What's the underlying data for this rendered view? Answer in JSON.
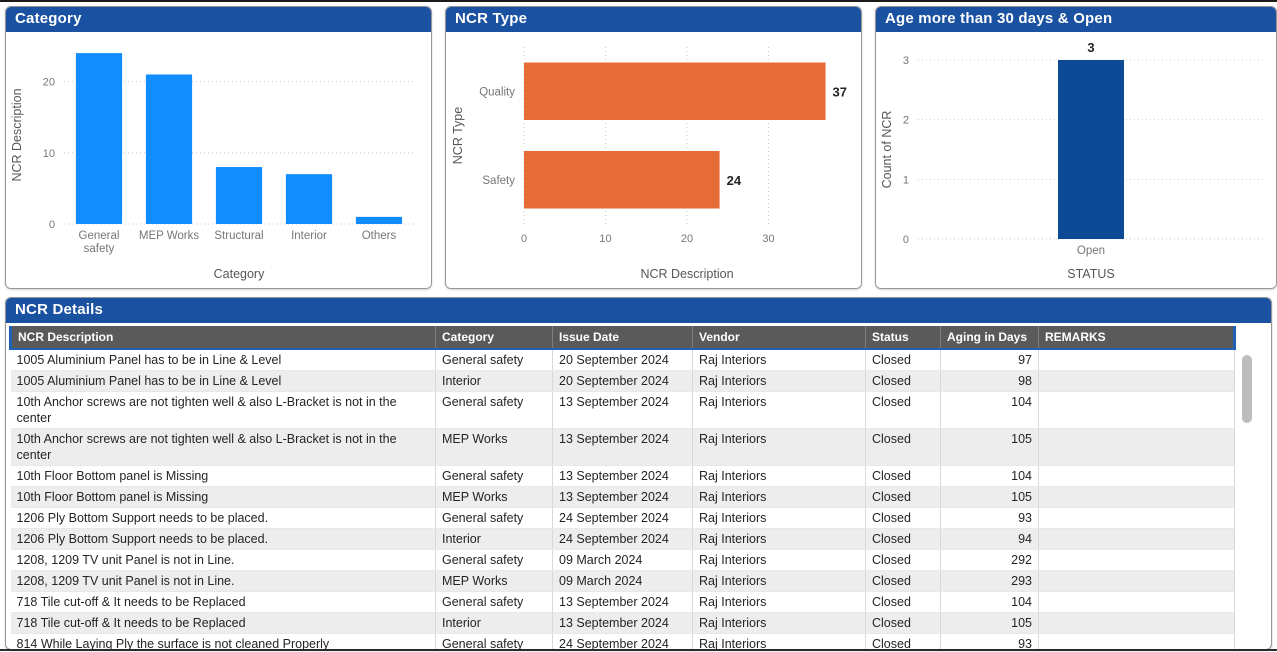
{
  "accent_colors": {
    "title_bar_blue": "#1A51A1",
    "category_bar_blue": "#118DFF",
    "ncr_type_bar_orange": "#E66C37",
    "age_bar_dark_blue": "#0D4A96",
    "table_header_gray": "#5A5A5A",
    "header_accent_blue": "#1F62B5"
  },
  "panels": {
    "category": {
      "title": "Category"
    },
    "ncr_type": {
      "title": "NCR Type"
    },
    "age": {
      "title": "Age more than 30 days & Open"
    },
    "details": {
      "title": "NCR Details"
    }
  },
  "chart_data": [
    {
      "type": "bar",
      "title": "Category",
      "categories": [
        "General\nsafety",
        "MEP Works",
        "Structural",
        "Interior",
        "Others"
      ],
      "values": [
        24,
        21,
        8,
        7,
        1
      ],
      "xlabel": "Category",
      "ylabel": "NCR Description",
      "yticks": [
        0,
        10,
        20
      ],
      "ylim": [
        0,
        25
      ],
      "grid": "dotted-horizontal",
      "color": "#118DFF",
      "show_data_labels": false
    },
    {
      "type": "bar-horizontal",
      "title": "NCR Type",
      "categories": [
        "Quality",
        "Safety"
      ],
      "values": [
        37,
        24
      ],
      "xlabel": "NCR Description",
      "ylabel": "NCR Type",
      "xticks": [
        0,
        10,
        20,
        30
      ],
      "xlim": [
        0,
        40
      ],
      "grid": "dotted-vertical",
      "color": "#E66C37",
      "show_data_labels": true
    },
    {
      "type": "bar",
      "title": "Age more than 30 days & Open",
      "categories": [
        "Open"
      ],
      "values": [
        3
      ],
      "xlabel": "STATUS",
      "ylabel": "Count of NCR",
      "yticks": [
        0,
        1,
        2,
        3
      ],
      "ylim": [
        0,
        3
      ],
      "grid": "dotted-horizontal",
      "color": "#0D4A96",
      "show_data_labels": true
    }
  ],
  "table": {
    "columns": [
      "NCR Description",
      "Category",
      "Issue Date",
      "Vendor",
      "Status",
      "Aging in Days",
      "REMARKS"
    ],
    "rows": [
      [
        "1005 Aluminium Panel has to be in Line & Level",
        "General safety",
        "20 September 2024",
        "Raj Interiors",
        "Closed",
        "97",
        ""
      ],
      [
        "1005 Aluminium Panel has to be in Line & Level",
        "Interior",
        "20 September 2024",
        "Raj Interiors",
        "Closed",
        "98",
        ""
      ],
      [
        "10th Anchor screws are not tighten well & also L-Bracket is not in the center",
        "General safety",
        "13 September 2024",
        "Raj Interiors",
        "Closed",
        "104",
        ""
      ],
      [
        "10th Anchor screws are not tighten well & also L-Bracket is not in the center",
        "MEP Works",
        "13 September 2024",
        "Raj Interiors",
        "Closed",
        "105",
        ""
      ],
      [
        "10th Floor Bottom panel is Missing",
        "General safety",
        "13 September 2024",
        "Raj Interiors",
        "Closed",
        "104",
        ""
      ],
      [
        "10th Floor Bottom panel is Missing",
        "MEP Works",
        "13 September 2024",
        "Raj Interiors",
        "Closed",
        "105",
        ""
      ],
      [
        "1206 Ply Bottom Support needs to be placed.",
        "General safety",
        "24 September 2024",
        "Raj Interiors",
        "Closed",
        "93",
        ""
      ],
      [
        "1206 Ply Bottom Support needs to be placed.",
        "Interior",
        "24 September 2024",
        "Raj Interiors",
        "Closed",
        "94",
        ""
      ],
      [
        "1208, 1209 TV unit Panel is not in Line.",
        "General safety",
        "09 March 2024",
        "Raj Interiors",
        "Closed",
        "292",
        ""
      ],
      [
        "1208, 1209 TV unit Panel is not in Line.",
        "MEP Works",
        "09 March 2024",
        "Raj Interiors",
        "Closed",
        "293",
        ""
      ],
      [
        "718 Tile cut-off & It needs to be Replaced",
        "General safety",
        "13 September 2024",
        "Raj Interiors",
        "Closed",
        "104",
        ""
      ],
      [
        "718 Tile cut-off & It needs to be Replaced",
        "Interior",
        "13 September 2024",
        "Raj Interiors",
        "Closed",
        "105",
        ""
      ],
      [
        "814 While Laying Ply the surface is not cleaned Properly",
        "General safety",
        "24 September 2024",
        "Raj Interiors",
        "Closed",
        "93",
        ""
      ]
    ]
  }
}
